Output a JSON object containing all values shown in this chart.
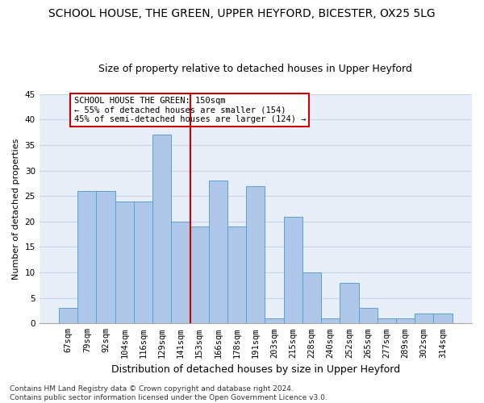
{
  "title": "SCHOOL HOUSE, THE GREEN, UPPER HEYFORD, BICESTER, OX25 5LG",
  "subtitle": "Size of property relative to detached houses in Upper Heyford",
  "xlabel": "Distribution of detached houses by size in Upper Heyford",
  "ylabel": "Number of detached properties",
  "categories": [
    "67sqm",
    "79sqm",
    "92sqm",
    "104sqm",
    "116sqm",
    "129sqm",
    "141sqm",
    "153sqm",
    "166sqm",
    "178sqm",
    "191sqm",
    "203sqm",
    "215sqm",
    "228sqm",
    "240sqm",
    "252sqm",
    "265sqm",
    "277sqm",
    "289sqm",
    "302sqm",
    "314sqm"
  ],
  "values": [
    3,
    26,
    26,
    24,
    24,
    37,
    20,
    19,
    28,
    19,
    27,
    1,
    21,
    10,
    1,
    8,
    3,
    1,
    1,
    2,
    2
  ],
  "bar_color": "#aec6e8",
  "bar_edge_color": "#5a9fd4",
  "vline_color": "#cc0000",
  "annotation_text": "SCHOOL HOUSE THE GREEN: 150sqm\n← 55% of detached houses are smaller (154)\n45% of semi-detached houses are larger (124) →",
  "annotation_box_color": "#ffffff",
  "annotation_box_edge_color": "#cc0000",
  "ylim": [
    0,
    45
  ],
  "yticks": [
    0,
    5,
    10,
    15,
    20,
    25,
    30,
    35,
    40,
    45
  ],
  "grid_color": "#c8d4e8",
  "background_color": "#e8eef8",
  "footer": "Contains HM Land Registry data © Crown copyright and database right 2024.\nContains public sector information licensed under the Open Government Licence v3.0.",
  "title_fontsize": 10,
  "subtitle_fontsize": 9,
  "xlabel_fontsize": 9,
  "ylabel_fontsize": 8,
  "tick_fontsize": 7.5,
  "annotation_fontsize": 7.5,
  "footer_fontsize": 6.5
}
